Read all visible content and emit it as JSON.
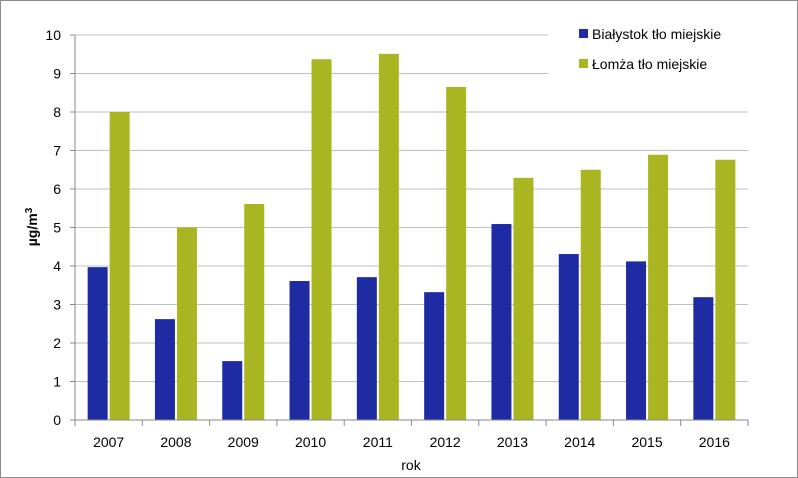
{
  "chart_data": {
    "type": "bar",
    "categories": [
      "2007",
      "2008",
      "2009",
      "2010",
      "2011",
      "2012",
      "2013",
      "2014",
      "2015",
      "2016"
    ],
    "series": [
      {
        "name": "Białystok tło miejskie",
        "color": "#1f2ba3",
        "values": [
          3.97,
          2.62,
          1.53,
          3.61,
          3.71,
          3.32,
          5.09,
          4.31,
          4.12,
          3.19
        ]
      },
      {
        "name": "Łomża tło miejskie",
        "color": "#a9b521",
        "values": [
          8.0,
          5.0,
          5.61,
          9.37,
          9.51,
          8.65,
          6.29,
          6.5,
          6.89,
          6.76
        ]
      }
    ],
    "xlabel": "rok",
    "ylabel_base": "µg/m",
    "ylabel_sup": "3",
    "ylim": [
      0,
      10
    ],
    "yticks": [
      "0",
      "1",
      "2",
      "3",
      "4",
      "5",
      "6",
      "7",
      "8",
      "9",
      "10"
    ],
    "grid": true,
    "legend_position": "top-right"
  }
}
